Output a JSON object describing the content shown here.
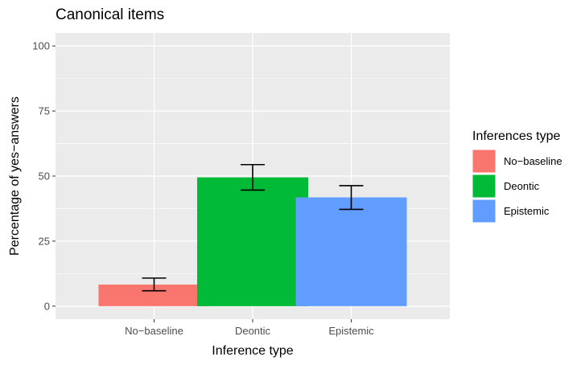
{
  "chart_data": {
    "type": "bar",
    "title": "Canonical items",
    "xlabel": "Inference type",
    "ylabel": "Percentage of yes−answers",
    "categories": [
      "No−baseline",
      "Deontic",
      "Epistemic"
    ],
    "values": [
      8.3,
      49.5,
      41.8
    ],
    "error_low": [
      5.9,
      44.6,
      37.2
    ],
    "error_high": [
      10.8,
      54.4,
      46.3
    ],
    "colors": [
      "#F8766D",
      "#00BA38",
      "#619CFF"
    ],
    "ylim": [
      0,
      100
    ],
    "yticks": [
      "0",
      "25",
      "50",
      "75",
      "100"
    ],
    "ytick_values": [
      0,
      25,
      50,
      75,
      100
    ],
    "grid": true,
    "legend": {
      "title": "Inferences type",
      "entries": [
        "No−baseline",
        "Deontic",
        "Epistemic"
      ],
      "placement": "right"
    }
  }
}
